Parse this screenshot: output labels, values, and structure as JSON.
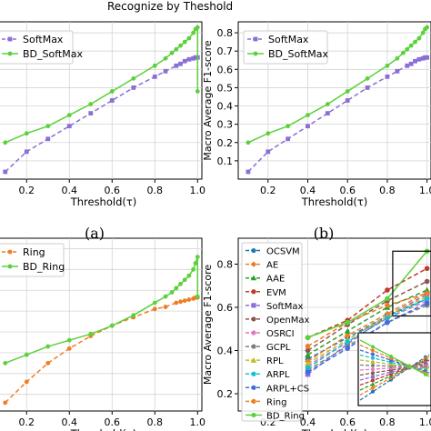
{
  "figure": {
    "header_text": "Recognize by Theshold",
    "panel_labels": [
      "(a)",
      "(b)"
    ]
  },
  "chart_data": [
    {
      "id": "a",
      "type": "line",
      "xlabel": "Threshold(τ)",
      "ylabel": "",
      "xlim": [
        0.05,
        1.02
      ],
      "ylim": [
        0.0,
        0.86
      ],
      "xticks": [
        "0.2",
        "0.4",
        "0.6",
        "0.8",
        "1.0"
      ],
      "yticks": [],
      "grid": true,
      "legend": "top-left",
      "series": [
        {
          "name": "SoftMax",
          "color": "#8B6FD6",
          "style": "dashed",
          "marker": "square",
          "x": [
            0.1,
            0.2,
            0.3,
            0.4,
            0.5,
            0.6,
            0.7,
            0.8,
            0.85,
            0.9,
            0.92,
            0.94,
            0.96,
            0.98,
            0.99,
            1.0
          ],
          "y": [
            0.04,
            0.15,
            0.22,
            0.29,
            0.36,
            0.43,
            0.5,
            0.56,
            0.59,
            0.62,
            0.63,
            0.645,
            0.655,
            0.66,
            0.665,
            0.665
          ]
        },
        {
          "name": "BD_SoftMax",
          "color": "#5BD13A",
          "style": "solid",
          "marker": "circle",
          "x": [
            0.1,
            0.2,
            0.3,
            0.4,
            0.5,
            0.6,
            0.7,
            0.8,
            0.85,
            0.88,
            0.9,
            0.92,
            0.94,
            0.96,
            0.98,
            0.99,
            1.0,
            1.0
          ],
          "y": [
            0.2,
            0.25,
            0.29,
            0.35,
            0.41,
            0.48,
            0.55,
            0.62,
            0.66,
            0.69,
            0.71,
            0.73,
            0.75,
            0.77,
            0.8,
            0.82,
            0.83,
            0.48
          ]
        }
      ]
    },
    {
      "id": "b",
      "type": "line",
      "xlabel": "Threshold(τ)",
      "ylabel": "Macro Average F1-score",
      "xlim": [
        0.05,
        1.02
      ],
      "ylim": [
        0.0,
        0.86
      ],
      "xticks": [
        "0.2",
        "0.4",
        "0.6",
        "0.8",
        "1.0"
      ],
      "yticks": [
        "0.1",
        "0.2",
        "0.3",
        "0.4",
        "0.5",
        "0.6",
        "0.7",
        "0.8"
      ],
      "grid": true,
      "legend": "top-left",
      "series": [
        {
          "name": "SoftMax",
          "color": "#8B6FD6",
          "style": "dashed",
          "marker": "square",
          "x": [
            0.1,
            0.2,
            0.3,
            0.4,
            0.5,
            0.6,
            0.7,
            0.8,
            0.85,
            0.9,
            0.92,
            0.94,
            0.96,
            0.98,
            0.99,
            1.0
          ],
          "y": [
            0.04,
            0.15,
            0.22,
            0.29,
            0.36,
            0.43,
            0.5,
            0.56,
            0.59,
            0.62,
            0.63,
            0.645,
            0.655,
            0.66,
            0.665,
            0.665
          ]
        },
        {
          "name": "BD_SoftMax",
          "color": "#5BD13A",
          "style": "solid",
          "marker": "circle",
          "x": [
            0.1,
            0.2,
            0.3,
            0.4,
            0.5,
            0.6,
            0.7,
            0.8,
            0.85,
            0.88,
            0.9,
            0.92,
            0.94,
            0.96,
            0.98,
            0.99,
            1.0
          ],
          "y": [
            0.2,
            0.25,
            0.29,
            0.35,
            0.41,
            0.48,
            0.55,
            0.62,
            0.66,
            0.69,
            0.71,
            0.73,
            0.75,
            0.77,
            0.8,
            0.82,
            0.83
          ]
        }
      ]
    },
    {
      "id": "c",
      "type": "line",
      "xlabel": "Threshold(τ)",
      "ylabel": "",
      "xlim": [
        0.05,
        1.02
      ],
      "ylim": [
        0.12,
        0.95
      ],
      "xticks": [
        "0.2",
        "0.4",
        "0.6",
        "0.8",
        "1.0"
      ],
      "yticks": [],
      "grid": true,
      "legend": "top-left",
      "series": [
        {
          "name": "Ring",
          "color": "#F07C26",
          "style": "dashed",
          "marker": "circle",
          "x": [
            0.1,
            0.2,
            0.3,
            0.4,
            0.5,
            0.6,
            0.7,
            0.8,
            0.85,
            0.9,
            0.92,
            0.94,
            0.96,
            0.98,
            0.99,
            1.0
          ],
          "y": [
            0.16,
            0.26,
            0.35,
            0.42,
            0.48,
            0.53,
            0.57,
            0.61,
            0.62,
            0.64,
            0.645,
            0.65,
            0.655,
            0.66,
            0.665,
            0.665
          ]
        },
        {
          "name": "BD_Ring",
          "color": "#5BD13A",
          "style": "solid",
          "marker": "circle",
          "x": [
            0.1,
            0.2,
            0.3,
            0.4,
            0.5,
            0.6,
            0.7,
            0.8,
            0.85,
            0.88,
            0.9,
            0.92,
            0.94,
            0.96,
            0.98,
            0.99,
            1.0,
            1.0
          ],
          "y": [
            0.35,
            0.39,
            0.43,
            0.46,
            0.49,
            0.53,
            0.58,
            0.64,
            0.67,
            0.69,
            0.71,
            0.73,
            0.75,
            0.77,
            0.8,
            0.83,
            0.86,
            0.67
          ]
        }
      ]
    },
    {
      "id": "d",
      "type": "line",
      "xlabel": "Threshold(τ)",
      "ylabel": "Macro Average F1-score",
      "xlim": [
        0.05,
        1.02
      ],
      "ylim": [
        0.12,
        0.92
      ],
      "xticks": [
        "0.2",
        "0.4",
        "0.6",
        "0.8",
        "1.0"
      ],
      "yticks": [
        "0.2",
        "0.4",
        "0.6",
        "0.8"
      ],
      "grid": true,
      "legend": "left",
      "series": [
        {
          "name": "OCSVM",
          "color": "#1F77B4",
          "style": "dashed",
          "marker": "circle",
          "x": [
            0.4,
            0.6,
            0.8,
            1.0
          ],
          "y": [
            0.36,
            0.46,
            0.56,
            0.64
          ]
        },
        {
          "name": "AE",
          "color": "#F07C26",
          "style": "dashed",
          "marker": "diamond",
          "x": [
            0.4,
            0.6,
            0.8,
            1.0
          ],
          "y": [
            0.35,
            0.47,
            0.57,
            0.67
          ]
        },
        {
          "name": "AAE",
          "color": "#2CA02C",
          "style": "dashed",
          "marker": "triangle",
          "x": [
            0.4,
            0.6,
            0.8,
            1.0
          ],
          "y": [
            0.38,
            0.49,
            0.6,
            0.68
          ]
        },
        {
          "name": "EVM",
          "color": "#C0392B",
          "style": "dashed",
          "marker": "circle",
          "x": [
            0.4,
            0.6,
            0.8,
            1.0
          ],
          "y": [
            0.46,
            0.54,
            0.68,
            0.78
          ]
        },
        {
          "name": "SoftMax",
          "color": "#8B6FD6",
          "style": "dashed",
          "marker": "square",
          "x": [
            0.4,
            0.6,
            0.8,
            1.0
          ],
          "y": [
            0.29,
            0.43,
            0.56,
            0.66
          ]
        },
        {
          "name": "OpenMax",
          "color": "#8C564B",
          "style": "dashed",
          "marker": "circle",
          "x": [
            0.4,
            0.6,
            0.8,
            1.0
          ],
          "y": [
            0.4,
            0.52,
            0.63,
            0.72
          ]
        },
        {
          "name": "OSRCI",
          "color": "#E377C2",
          "style": "dashed",
          "marker": "circle",
          "x": [
            0.4,
            0.6,
            0.8,
            1.0
          ],
          "y": [
            0.33,
            0.44,
            0.55,
            0.63
          ]
        },
        {
          "name": "GCPL",
          "color": "#7F7F7F",
          "style": "dashed",
          "marker": "circle",
          "x": [
            0.4,
            0.6,
            0.8,
            1.0
          ],
          "y": [
            0.31,
            0.42,
            0.53,
            0.61
          ]
        },
        {
          "name": "RPL",
          "color": "#BCBD22",
          "style": "dashed",
          "marker": "triangle",
          "x": [
            0.4,
            0.6,
            0.8,
            1.0
          ],
          "y": [
            0.34,
            0.45,
            0.56,
            0.65
          ]
        },
        {
          "name": "ARPL",
          "color": "#17BECF",
          "style": "dashed",
          "marker": "circle",
          "x": [
            0.4,
            0.6,
            0.8,
            1.0
          ],
          "y": [
            0.32,
            0.44,
            0.55,
            0.64
          ]
        },
        {
          "name": "ARPL+CS",
          "color": "#4169E1",
          "style": "dashed",
          "marker": "circle",
          "x": [
            0.4,
            0.6,
            0.8,
            1.0
          ],
          "y": [
            0.3,
            0.41,
            0.53,
            0.62
          ]
        },
        {
          "name": "Ring",
          "color": "#F07C26",
          "style": "dashed",
          "marker": "circle",
          "x": [
            0.4,
            0.6,
            0.8,
            1.0
          ],
          "y": [
            0.42,
            0.53,
            0.61,
            0.665
          ]
        },
        {
          "name": "BD_Ring",
          "color": "#5BD13A",
          "style": "solid",
          "marker": "circle",
          "x": [
            0.4,
            0.6,
            0.8,
            1.0
          ],
          "y": [
            0.46,
            0.53,
            0.64,
            0.86
          ]
        }
      ]
    }
  ]
}
